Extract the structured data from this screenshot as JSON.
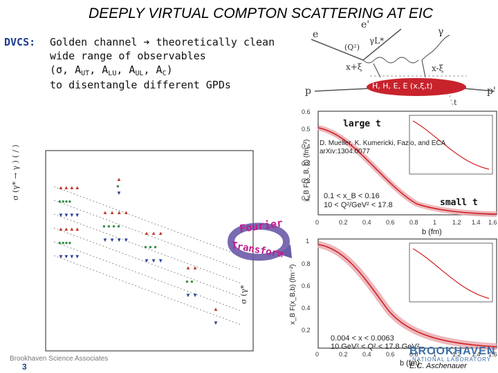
{
  "slide": {
    "title": "DEEPLY VIRTUAL COMPTON SCATTERING AT EIC",
    "dvcs_label": "DVCS:",
    "lines": [
      "Golden channel ➔ theoretically clean",
      "wide range of observables",
      "(σ, A",
      "to disentangle different GPDs"
    ],
    "obs_subs": {
      "ut": "UT",
      "lu": "LU",
      "ul": "UL",
      "c": "C"
    },
    "page_number": "3",
    "footer_left": "Brookhaven Science Associates",
    "footer_right": "E.C. Aschenauer",
    "logo_main": "BROOKHAVEN",
    "logo_sub": "NATIONAL LABORATORY"
  },
  "feynman": {
    "e": "e",
    "e_prime": "e'",
    "gamma": "γ",
    "q2": "(Q²)",
    "gamma_l": "γL*",
    "x_plus": "x+ξ",
    "x_minus": "x-ξ",
    "blob": "H, H, E, E (x,ξ,t)",
    "p": "p",
    "p_prime": "p'",
    "t": "t"
  },
  "plots": {
    "top_ylabel": "x_B F(x_B, b) (fm⁻²)",
    "large_b": "large t",
    "ref": "D. Mueller, K. Kumericki, Fazio, and ECA  arXiv:1304.0077",
    "kin1_a": "0.1 < x_B < 0.16",
    "kin1_b": "10 < Q²/GeV² < 17.8",
    "small_t": "small t",
    "b_axis": "b (fm)",
    "bottom_ylabel": "x_B F(x_B,b) (fm⁻²)",
    "kin2_a": "0.004 < x < 0.0063",
    "kin2_b": "10 GeV² < Q² < 17.8 GeV²",
    "b_axis2": "b (fm)",
    "fourier": "Fourier",
    "transform": "Transform",
    "left_yaxis": "σ (γ* → γ ) (   /   )",
    "mid_yaxis": "σ (γ*"
  },
  "colors": {
    "title": "#000000",
    "dvcs": "#1c3d8c",
    "blob": "#c8232c",
    "curve": "#d2181c",
    "band": "#e7a6ad",
    "arrow": "#6a5aa8",
    "fourier_text": "#c21a8c",
    "logo": "#3e6ea7"
  }
}
